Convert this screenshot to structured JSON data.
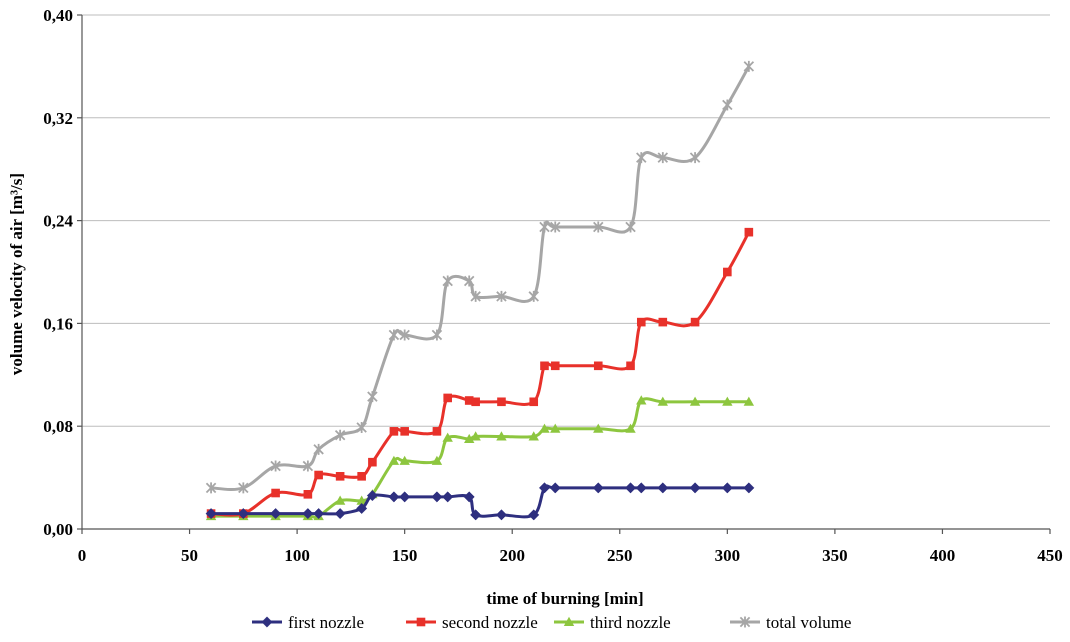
{
  "chart_data": {
    "type": "line",
    "title": "",
    "xlabel": "time of burning [min]",
    "ylabel": "volume velocity of air [m³/s]",
    "xlim": [
      0,
      450
    ],
    "ylim": [
      0,
      0.4
    ],
    "xticks": [
      0,
      50,
      100,
      150,
      200,
      250,
      300,
      350,
      400,
      450
    ],
    "xtick_labels": [
      "0",
      "50",
      "100",
      "150",
      "200",
      "250",
      "300",
      "350",
      "400",
      "450"
    ],
    "yticks": [
      0,
      0.08,
      0.16,
      0.24,
      0.32,
      0.4
    ],
    "ytick_labels": [
      "0,00",
      "0,08",
      "0,16",
      "0,24",
      "0,32",
      "0,40"
    ],
    "grid": "horizontal",
    "legend_position": "bottom",
    "x": [
      60,
      75,
      90,
      105,
      110,
      120,
      130,
      135,
      145,
      150,
      165,
      170,
      180,
      183,
      195,
      210,
      215,
      220,
      240,
      255,
      260,
      270,
      285,
      300,
      310
    ],
    "series": [
      {
        "name": "first nozzle",
        "color": "#2e2f7f",
        "marker": "diamond",
        "values": [
          0.012,
          0.012,
          0.012,
          0.012,
          0.012,
          0.012,
          0.016,
          0.026,
          0.025,
          0.025,
          0.025,
          0.025,
          0.025,
          0.011,
          0.011,
          0.011,
          0.032,
          0.032,
          0.032,
          0.032,
          0.032,
          0.032,
          0.032,
          0.032,
          0.032
        ]
      },
      {
        "name": "second nozzle",
        "color": "#e8312a",
        "marker": "square",
        "values": [
          0.012,
          0.012,
          0.028,
          0.027,
          0.042,
          0.041,
          0.041,
          0.052,
          0.076,
          0.076,
          0.076,
          0.102,
          0.1,
          0.099,
          0.099,
          0.099,
          0.127,
          0.127,
          0.127,
          0.127,
          0.161,
          0.161,
          0.161,
          0.2,
          0.231
        ]
      },
      {
        "name": "third nozzle",
        "color": "#8dc63f",
        "marker": "triangle",
        "values": [
          0.01,
          0.01,
          0.01,
          0.01,
          0.01,
          0.022,
          0.022,
          0.027,
          0.053,
          0.053,
          0.053,
          0.071,
          0.07,
          0.072,
          0.072,
          0.072,
          0.078,
          0.078,
          0.078,
          0.078,
          0.1,
          0.099,
          0.099,
          0.099,
          0.099
        ]
      },
      {
        "name": "total volume",
        "color": "#a6a6a6",
        "marker": "asterisk",
        "values": [
          0.032,
          0.032,
          0.049,
          0.049,
          0.062,
          0.073,
          0.079,
          0.103,
          0.151,
          0.151,
          0.151,
          0.193,
          0.193,
          0.181,
          0.181,
          0.181,
          0.235,
          0.235,
          0.235,
          0.235,
          0.289,
          0.289,
          0.289,
          0.33,
          0.36
        ]
      }
    ]
  }
}
